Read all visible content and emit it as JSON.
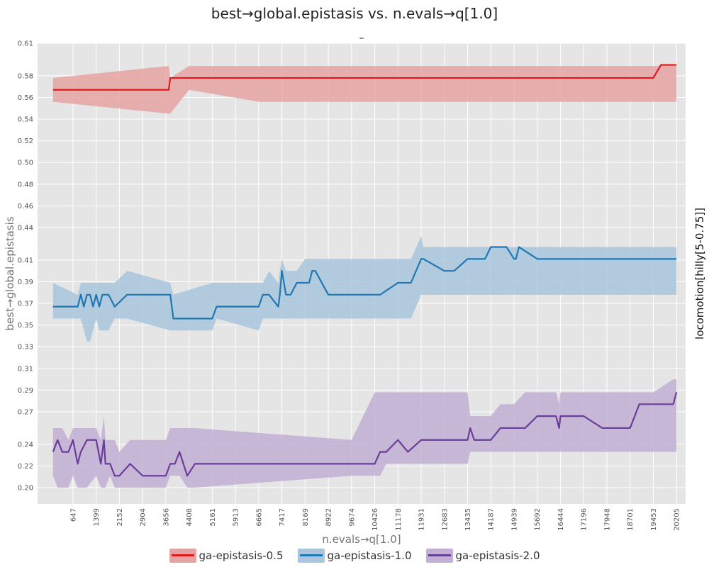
{
  "chart_data": {
    "type": "line",
    "title": "best→global.epistasis vs. n.evals→q[1.0]",
    "subtitle": "–",
    "xlabel": "n.evals→q[1.0]",
    "ylabel": "best→global.epistasis",
    "right_label": "locomotion[hilly[5-0.75]]",
    "xlim": [
      -500,
      20500
    ],
    "ylim": [
      0.185,
      0.61
    ],
    "x_ticks": [
      647,
      1399,
      2152,
      2904,
      3656,
      4408,
      5161,
      5913,
      6665,
      7417,
      8169,
      8922,
      9674,
      10426,
      11178,
      11931,
      12683,
      13435,
      14187,
      14939,
      15692,
      16444,
      17196,
      17948,
      18701,
      19453,
      20205
    ],
    "y_ticks": [
      "0.20",
      "0.22",
      "0.24",
      "0.27",
      "0.29",
      "0.31",
      "0.33",
      "0.35",
      "0.37",
      "0.39",
      "0.41",
      "0.44",
      "0.46",
      "0.48",
      "0.50",
      "0.52",
      "0.54",
      "0.56",
      "0.58",
      "0.61"
    ],
    "grid": true,
    "legend_position": "bottom",
    "series": [
      {
        "name": "ga-epistasis-0.5",
        "color": "#e41a1c",
        "band_color": "#e6a3a3",
        "x": [
          0,
          3750,
          3800,
          4408,
          6665,
          19453,
          19700,
          20205
        ],
        "y": [
          0.567,
          0.567,
          0.578,
          0.578,
          0.578,
          0.578,
          0.59,
          0.59
        ],
        "low": [
          0.556,
          0.545,
          0.545,
          0.567,
          0.556,
          0.556,
          0.556,
          0.556
        ],
        "high": [
          0.578,
          0.589,
          0.578,
          0.589,
          0.589,
          0.589,
          0.589,
          0.589
        ]
      },
      {
        "name": "ga-epistasis-1.0",
        "color": "#1f78b4",
        "band_color": "#a9c6dc",
        "x": [
          0,
          800,
          900,
          1000,
          1100,
          1200,
          1300,
          1399,
          1500,
          1600,
          1800,
          2000,
          2400,
          3800,
          3900,
          5161,
          5300,
          6665,
          6800,
          7000,
          7300,
          7350,
          7417,
          7550,
          7700,
          7900,
          8169,
          8300,
          8400,
          8500,
          8922,
          9674,
          10426,
          10600,
          11178,
          11300,
          11600,
          11931,
          12000,
          12683,
          13000,
          13435,
          14000,
          14187,
          14700,
          14939,
          15000,
          15100,
          15692,
          17196,
          18701,
          20205
        ],
        "y": [
          0.367,
          0.367,
          0.378,
          0.367,
          0.378,
          0.378,
          0.367,
          0.378,
          0.367,
          0.378,
          0.378,
          0.367,
          0.378,
          0.378,
          0.356,
          0.356,
          0.367,
          0.367,
          0.378,
          0.378,
          0.367,
          0.378,
          0.4,
          0.378,
          0.378,
          0.389,
          0.389,
          0.389,
          0.4,
          0.4,
          0.378,
          0.378,
          0.378,
          0.378,
          0.389,
          0.389,
          0.389,
          0.411,
          0.411,
          0.4,
          0.4,
          0.411,
          0.411,
          0.422,
          0.422,
          0.411,
          0.411,
          0.422,
          0.411,
          0.411,
          0.411,
          0.411
        ],
        "low": [
          0.356,
          0.356,
          0.356,
          0.345,
          0.335,
          0.335,
          0.345,
          0.356,
          0.345,
          0.345,
          0.345,
          0.356,
          0.356,
          0.345,
          0.345,
          0.345,
          0.356,
          0.345,
          0.356,
          0.356,
          0.356,
          0.356,
          0.356,
          0.356,
          0.356,
          0.356,
          0.356,
          0.356,
          0.356,
          0.356,
          0.356,
          0.356,
          0.356,
          0.356,
          0.356,
          0.356,
          0.356,
          0.378,
          0.378,
          0.378,
          0.378,
          0.378,
          0.378,
          0.378,
          0.378,
          0.378,
          0.378,
          0.378,
          0.378,
          0.378,
          0.378,
          0.378
        ],
        "high": [
          0.389,
          0.378,
          0.389,
          0.389,
          0.389,
          0.389,
          0.389,
          0.389,
          0.389,
          0.389,
          0.389,
          0.389,
          0.4,
          0.389,
          0.378,
          0.389,
          0.389,
          0.389,
          0.389,
          0.4,
          0.389,
          0.4,
          0.411,
          0.4,
          0.4,
          0.4,
          0.411,
          0.411,
          0.411,
          0.411,
          0.411,
          0.411,
          0.411,
          0.411,
          0.411,
          0.411,
          0.411,
          0.432,
          0.422,
          0.422,
          0.422,
          0.422,
          0.422,
          0.422,
          0.422,
          0.422,
          0.422,
          0.422,
          0.422,
          0.422,
          0.422,
          0.422
        ]
      },
      {
        "name": "ga-epistasis-2.0",
        "color": "#6a3d9a",
        "band_color": "#c2afd4",
        "x": [
          0,
          150,
          300,
          500,
          647,
          800,
          900,
          1100,
          1399,
          1550,
          1650,
          1700,
          1850,
          2000,
          2152,
          2500,
          2904,
          3656,
          3800,
          3950,
          4100,
          4350,
          4600,
          9674,
          10426,
          10600,
          10800,
          11178,
          11500,
          11931,
          13435,
          13520,
          13650,
          14187,
          14500,
          14800,
          14939,
          15300,
          15692,
          16300,
          16400,
          16444,
          17196,
          17800,
          18701,
          19000,
          19453,
          20100,
          20205
        ],
        "y": [
          0.233,
          0.244,
          0.233,
          0.233,
          0.244,
          0.222,
          0.233,
          0.244,
          0.244,
          0.222,
          0.244,
          0.222,
          0.222,
          0.211,
          0.211,
          0.222,
          0.211,
          0.211,
          0.222,
          0.222,
          0.233,
          0.211,
          0.222,
          0.222,
          0.222,
          0.233,
          0.233,
          0.244,
          0.233,
          0.244,
          0.244,
          0.255,
          0.244,
          0.244,
          0.255,
          0.255,
          0.255,
          0.255,
          0.266,
          0.266,
          0.255,
          0.266,
          0.266,
          0.255,
          0.255,
          0.277,
          0.277,
          0.277,
          0.288
        ],
        "low": [
          0.211,
          0.2,
          0.2,
          0.2,
          0.211,
          0.2,
          0.2,
          0.2,
          0.211,
          0.2,
          0.2,
          0.2,
          0.211,
          0.2,
          0.2,
          0.2,
          0.2,
          0.2,
          0.211,
          0.211,
          0.211,
          0.2,
          0.2,
          0.211,
          0.211,
          0.211,
          0.222,
          0.222,
          0.222,
          0.222,
          0.222,
          0.233,
          0.233,
          0.233,
          0.233,
          0.233,
          0.233,
          0.233,
          0.233,
          0.233,
          0.233,
          0.233,
          0.233,
          0.233,
          0.233,
          0.233,
          0.233,
          0.233,
          0.233
        ],
        "high": [
          0.255,
          0.255,
          0.255,
          0.244,
          0.255,
          0.255,
          0.255,
          0.255,
          0.255,
          0.244,
          0.266,
          0.244,
          0.244,
          0.244,
          0.233,
          0.244,
          0.244,
          0.244,
          0.255,
          0.255,
          0.255,
          0.255,
          0.255,
          0.244,
          0.288,
          0.288,
          0.288,
          0.288,
          0.288,
          0.288,
          0.288,
          0.266,
          0.266,
          0.266,
          0.277,
          0.277,
          0.277,
          0.288,
          0.288,
          0.288,
          0.277,
          0.288,
          0.288,
          0.288,
          0.288,
          0.288,
          0.288,
          0.3,
          0.3
        ]
      }
    ]
  }
}
